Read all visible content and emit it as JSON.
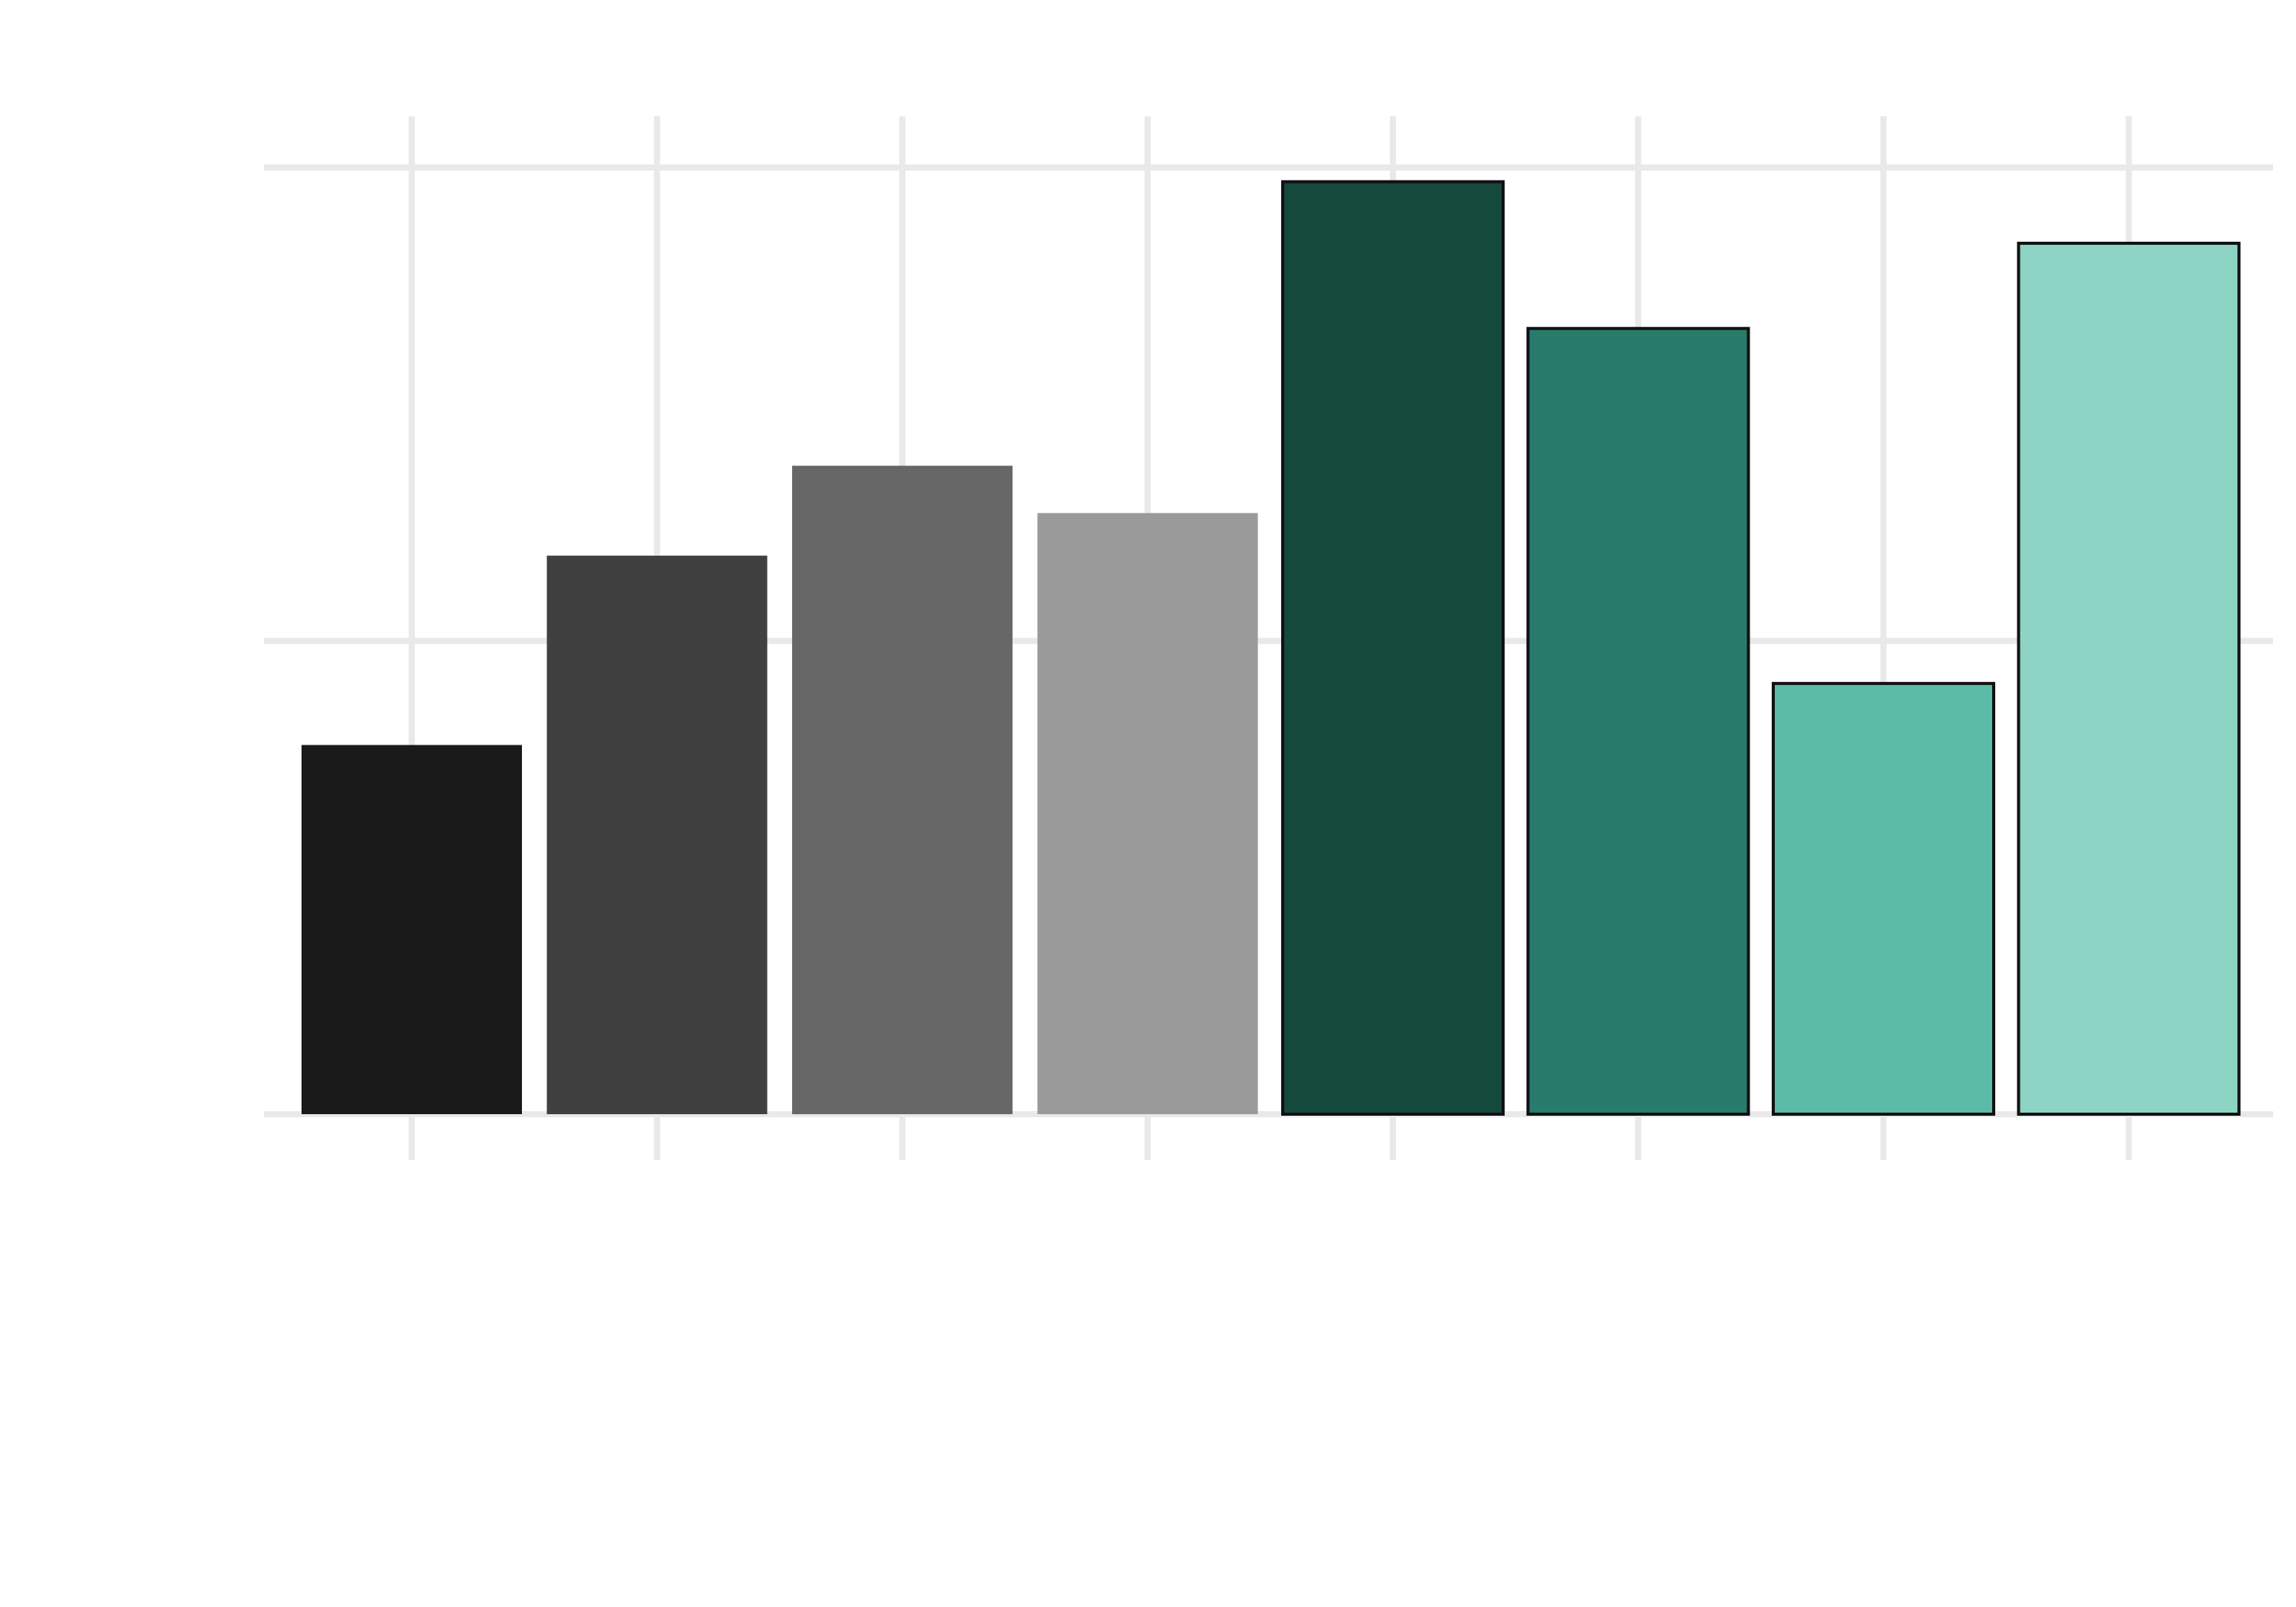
{
  "chart_data": {
    "type": "bar",
    "title": "",
    "xlabel": "",
    "ylabel": "",
    "categories": [
      "",
      "",
      "",
      "",
      "",
      "",
      "",
      ""
    ],
    "values": [
      0.78,
      1.18,
      1.37,
      1.27,
      1.97,
      1.66,
      0.91,
      1.84
    ],
    "ylim": [
      0,
      2.05
    ],
    "yticks": [
      0,
      1,
      2
    ],
    "tick_labels_visible": false,
    "grid": true,
    "legend": "none",
    "colors": [
      "#1a1a1a",
      "#404040",
      "#676767",
      "#9a9a9a",
      "#15493c",
      "#297b6b",
      "#5bbba7",
      "#8dd4c5"
    ],
    "bar_outline": [
      false,
      false,
      false,
      false,
      true,
      true,
      true,
      true
    ],
    "outline_color": "#111111",
    "grid_color": "#e9e9e9"
  }
}
